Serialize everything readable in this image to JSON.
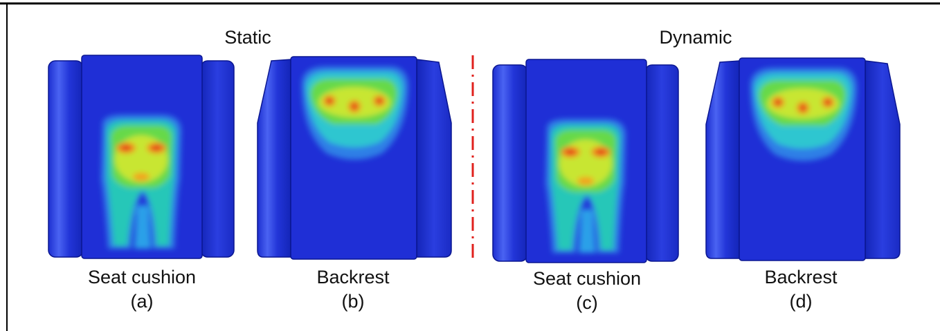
{
  "headers": {
    "static": "Static",
    "dynamic": "Dynamic"
  },
  "panels": [
    {
      "label": "Seat cushion",
      "tag": "(a)"
    },
    {
      "label": "Backrest",
      "tag": "(b)"
    },
    {
      "label": "Seat cushion",
      "tag": "(c)"
    },
    {
      "label": "Backrest",
      "tag": "(d)"
    }
  ]
}
